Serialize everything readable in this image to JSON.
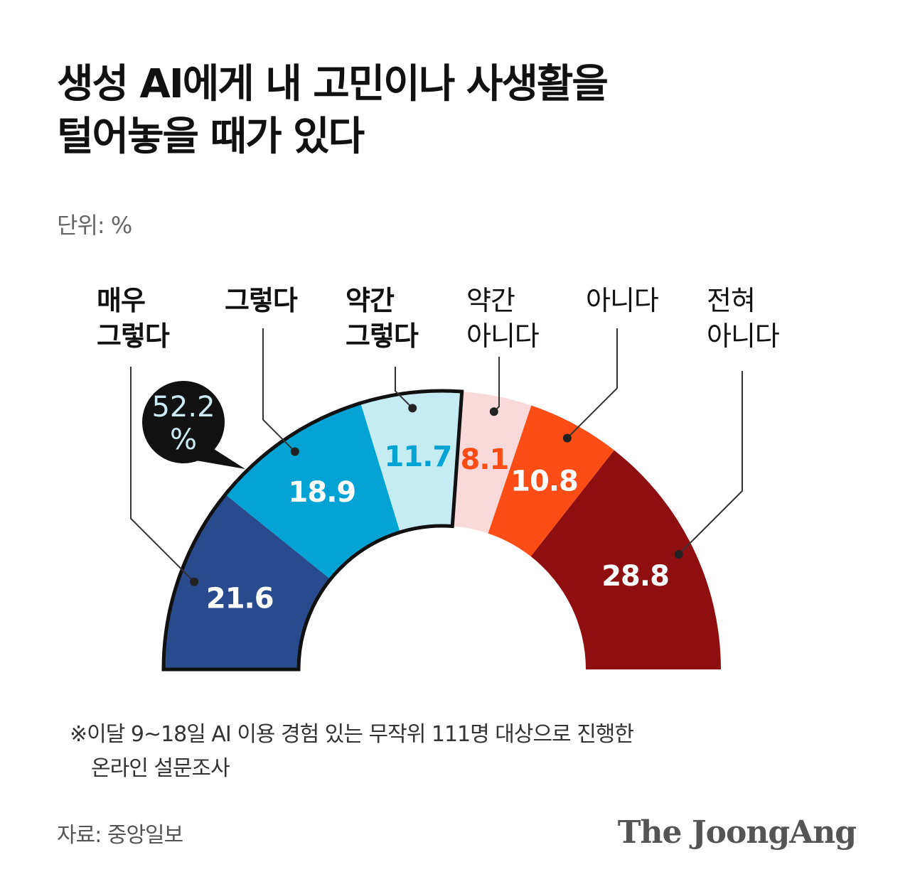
{
  "title": {
    "line1": "생성 AI에게 내 고민이나 사생활을",
    "line2": "털어놓을 때가 있다"
  },
  "unit_label": "단위: %",
  "chart_data": {
    "type": "pie",
    "variant": "half-donut",
    "categories": [
      "매우 그렇다",
      "그렇다",
      "약간 그렇다",
      "약간 아니다",
      "아니다",
      "전혀 아니다"
    ],
    "values": [
      21.6,
      18.9,
      11.7,
      8.1,
      10.8,
      28.8
    ],
    "value_labels": [
      "21.6",
      "18.9",
      "11.7",
      "8.1",
      "10.8",
      "28.8"
    ],
    "category_lines": [
      [
        "매우",
        "그렇다"
      ],
      [
        "그렇다"
      ],
      [
        "약간",
        "그렇다"
      ],
      [
        "약간",
        "아니다"
      ],
      [
        "아니다"
      ],
      [
        "전혀",
        "아니다"
      ]
    ],
    "colors": [
      "#2a4a8e",
      "#00a3d3",
      "#c6ecf3",
      "#f9d9d9",
      "#fc4d16",
      "#8f0f10"
    ],
    "label_colors": [
      "#ffffff",
      "#ffffff",
      "#00a3d3",
      "#fc4d16",
      "#ffffff",
      "#ffffff"
    ],
    "bold_categories": [
      true,
      true,
      true,
      false,
      false,
      false
    ],
    "highlight": {
      "text_lines": [
        "52.2",
        "%"
      ],
      "value": 52.2,
      "outlined_group": [
        "매우 그렇다",
        "그렇다",
        "약간 그렇다"
      ],
      "text_color": "#cde9f2",
      "bubble_color": "#111111"
    }
  },
  "footnote": {
    "line1": "※이달 9~18일 AI 이용 경험 있는 무작위 111명 대상으로 진행한",
    "line2": "온라인 설문조사"
  },
  "source": "자료: 중앙일보",
  "logo_text": "The JoongAng"
}
